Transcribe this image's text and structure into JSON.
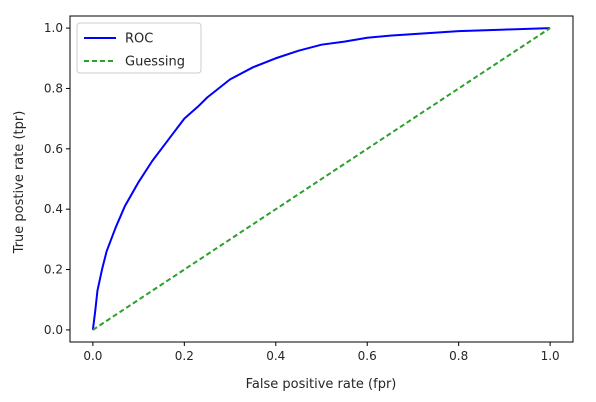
{
  "chart_data": {
    "type": "line",
    "xlabel": "False positive rate (fpr)",
    "ylabel": "True postive rate (tpr)",
    "xlim": [
      -0.05,
      1.05
    ],
    "ylim": [
      -0.04,
      1.04
    ],
    "xticks": [
      0.0,
      0.2,
      0.4,
      0.6,
      0.8,
      1.0
    ],
    "yticks": [
      0.0,
      0.2,
      0.4,
      0.6,
      0.8,
      1.0
    ],
    "xtick_labels": [
      "0.0",
      "0.2",
      "0.4",
      "0.6",
      "0.8",
      "1.0"
    ],
    "ytick_labels": [
      "0.0",
      "0.2",
      "0.4",
      "0.6",
      "0.8",
      "1.0"
    ],
    "grid": false,
    "legend_position": "upper-left",
    "series": [
      {
        "name": "ROC",
        "color": "#0000ff",
        "style": "solid",
        "x": [
          0.0,
          0.005,
          0.01,
          0.02,
          0.03,
          0.05,
          0.07,
          0.1,
          0.13,
          0.15,
          0.18,
          0.2,
          0.23,
          0.25,
          0.3,
          0.35,
          0.4,
          0.45,
          0.5,
          0.55,
          0.6,
          0.65,
          0.7,
          0.8,
          0.9,
          1.0
        ],
        "y": [
          0.0,
          0.06,
          0.13,
          0.2,
          0.26,
          0.34,
          0.41,
          0.49,
          0.56,
          0.6,
          0.66,
          0.7,
          0.74,
          0.77,
          0.83,
          0.87,
          0.9,
          0.925,
          0.945,
          0.955,
          0.968,
          0.975,
          0.98,
          0.99,
          0.995,
          1.0
        ]
      },
      {
        "name": "Guessing",
        "color": "#2ca02c",
        "style": "dashed",
        "x": [
          0.0,
          1.0
        ],
        "y": [
          0.0,
          1.0
        ]
      }
    ]
  }
}
